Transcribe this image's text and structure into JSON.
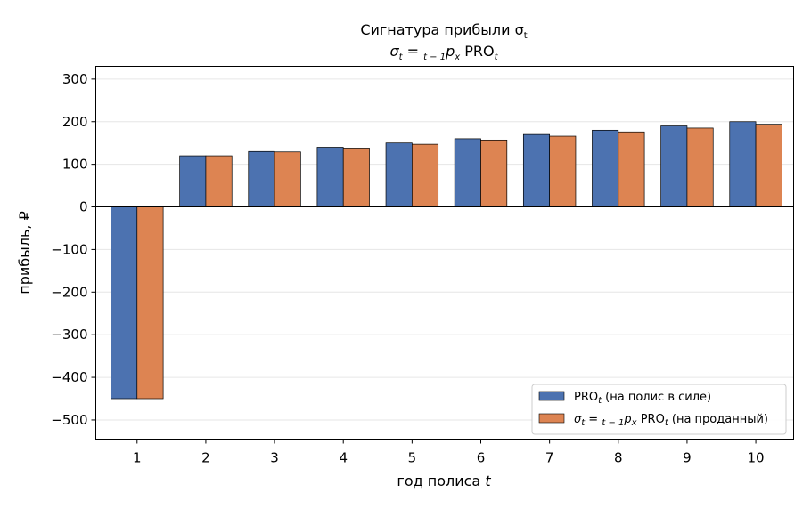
{
  "chart_data": {
    "type": "bar",
    "title": "Сигнатура прибыли σ",
    "title_subscript": "t",
    "subtitle_parts": {
      "sigma": "σ",
      "eq": " = ",
      "pre_sub": "t − 1",
      "p": "p",
      "p_sub": "x",
      "pro": " PRO",
      "pro_sub": "t"
    },
    "xlabel": "год полиса t",
    "ylabel": "прибыль, ₽",
    "categories": [
      "1",
      "2",
      "3",
      "4",
      "5",
      "6",
      "7",
      "8",
      "9",
      "10"
    ],
    "yticks": [
      300,
      200,
      100,
      0,
      -100,
      -200,
      -300,
      -400,
      -500
    ],
    "ylim": [
      -545,
      330
    ],
    "grid": true,
    "legend_position": "lower-right",
    "series": [
      {
        "name": "PRO",
        "name_sub": "t",
        "name_rest": " (на полис в силе)",
        "color": "#4c72b0",
        "values": [
          -450,
          120,
          130,
          140,
          150,
          160,
          170,
          180,
          190,
          200
        ]
      },
      {
        "name": "σ",
        "name_sub": "t",
        "name_mid": " = ",
        "name_pre_sub": "t − 1",
        "name_p": "p",
        "name_p_sub": "x",
        "name_pro": " PRO",
        "name_pro_sub": "t",
        "name_rest": " (на проданный)",
        "color": "#dd8452",
        "values": [
          -450,
          120,
          129,
          138,
          147,
          157,
          166,
          176,
          185,
          194
        ]
      }
    ]
  }
}
